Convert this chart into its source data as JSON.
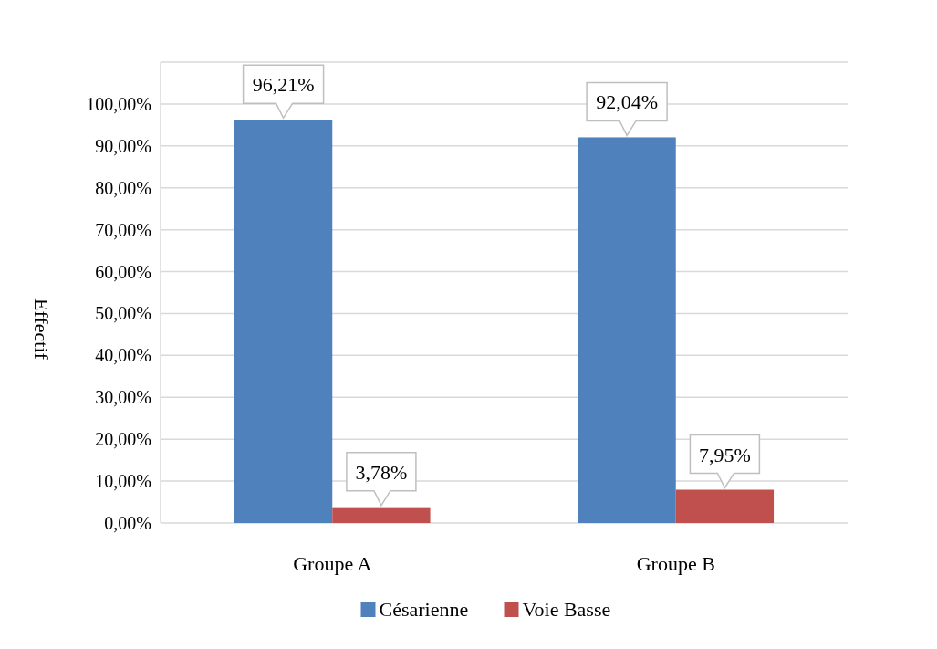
{
  "chart_data": {
    "type": "bar",
    "ylabel": "Effectif",
    "categories": [
      "Groupe A",
      "Groupe B"
    ],
    "series": [
      {
        "name": "Césarienne",
        "color": "#4f81bd",
        "values": [
          96.21,
          92.04
        ],
        "value_labels": [
          "96,21%",
          "92,04%"
        ]
      },
      {
        "name": "Voie Basse",
        "color": "#c0504d",
        "values": [
          3.78,
          7.95
        ],
        "value_labels": [
          "3,78%",
          "7,95%"
        ]
      }
    ],
    "ylim": [
      0,
      110
    ],
    "yticks": [
      {
        "value": 0,
        "label": "0,00%"
      },
      {
        "value": 10,
        "label": "10,00%"
      },
      {
        "value": 20,
        "label": "20,00%"
      },
      {
        "value": 30,
        "label": "30,00%"
      },
      {
        "value": 40,
        "label": "40,00%"
      },
      {
        "value": 50,
        "label": "50,00%"
      },
      {
        "value": 60,
        "label": "60,00%"
      },
      {
        "value": 70,
        "label": "70,00%"
      },
      {
        "value": 80,
        "label": "80,00%"
      },
      {
        "value": 90,
        "label": "90,00%"
      },
      {
        "value": 100,
        "label": "100,00%"
      },
      {
        "value": 110,
        "label": null
      }
    ],
    "grid": true,
    "legend": "bottom"
  }
}
